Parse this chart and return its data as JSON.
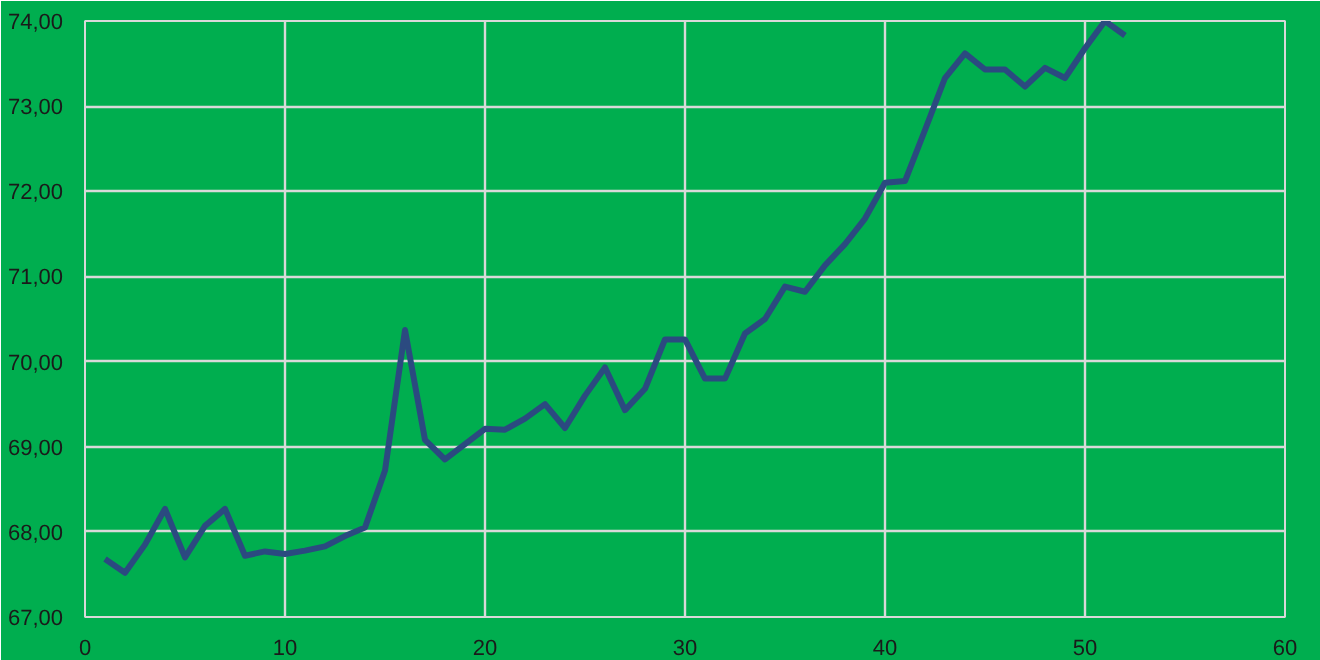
{
  "chart_data": {
    "type": "line",
    "x": [
      1,
      2,
      3,
      4,
      5,
      6,
      7,
      8,
      9,
      10,
      11,
      12,
      13,
      14,
      15,
      16,
      17,
      18,
      19,
      20,
      21,
      22,
      23,
      24,
      25,
      26,
      27,
      28,
      29,
      30,
      31,
      32,
      33,
      34,
      35,
      36,
      37,
      38,
      39,
      40,
      41,
      42,
      43,
      44,
      45,
      46,
      47,
      48,
      49,
      50,
      51,
      52
    ],
    "series": [
      {
        "color": "#2b4a80",
        "values": [
          67.68,
          67.52,
          67.85,
          68.27,
          67.7,
          68.07,
          68.27,
          67.72,
          67.77,
          67.74,
          67.78,
          67.83,
          67.95,
          68.05,
          68.72,
          70.37,
          69.08,
          68.85,
          69.03,
          69.21,
          69.2,
          69.33,
          69.5,
          69.22,
          69.6,
          69.93,
          69.43,
          69.68,
          70.26,
          70.26,
          69.8,
          69.8,
          70.33,
          70.5,
          70.88,
          70.82,
          71.13,
          71.38,
          71.68,
          72.1,
          72.12,
          72.72,
          73.33,
          73.62,
          73.43,
          73.43,
          73.23,
          73.45,
          73.33,
          73.68,
          74.0,
          73.83
        ]
      }
    ],
    "xlim": [
      0,
      60
    ],
    "xticks": [
      0,
      10,
      20,
      30,
      40,
      50,
      60
    ],
    "ylim": [
      67,
      74
    ],
    "yticks": [
      {
        "value": 67,
        "label": "67,00"
      },
      {
        "value": 68,
        "label": "68,00"
      },
      {
        "value": 69,
        "label": "69,00"
      },
      {
        "value": 70,
        "label": "70,00"
      },
      {
        "value": 71,
        "label": "71,00"
      },
      {
        "value": 72,
        "label": "72,00"
      },
      {
        "value": 73,
        "label": "73,00"
      },
      {
        "value": 74,
        "label": "74,00"
      }
    ],
    "grid": true,
    "marker": "none",
    "line_style": "solid"
  }
}
